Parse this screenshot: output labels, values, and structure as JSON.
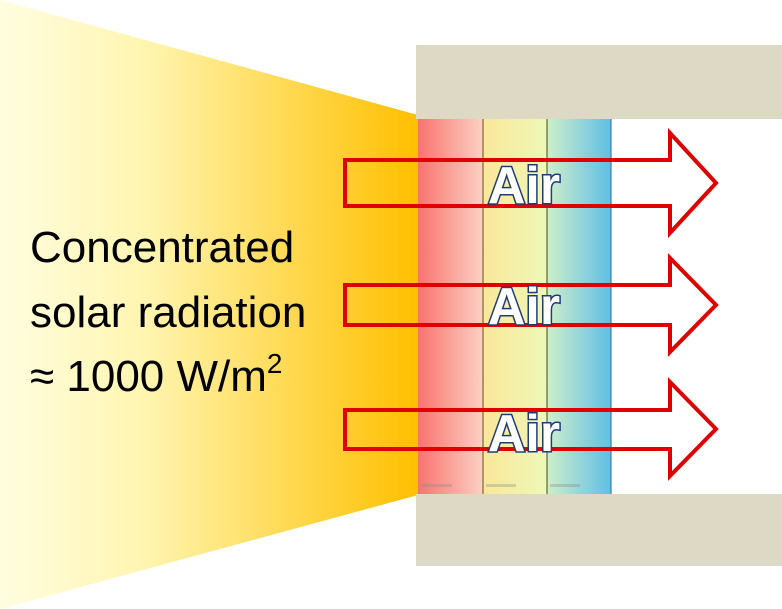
{
  "diagram": {
    "radiation_label": {
      "lines": [
        "Concentrated",
        "solar radiation",
        "≈ 1000 W/m"
      ],
      "superscript": "2"
    },
    "air_flows": [
      {
        "label": "Air"
      },
      {
        "label": "Air"
      },
      {
        "label": "Air"
      }
    ],
    "colors": {
      "beam_light": "#fffdd0",
      "beam_dark": "#ffc000",
      "housing": "#ddd9c4",
      "arrow_outline": "#e00000",
      "air_text_outline": "#1f3b78",
      "absorber_layers": [
        "#f4746e",
        "#f6ee9a",
        "#6ec5e6"
      ]
    }
  }
}
